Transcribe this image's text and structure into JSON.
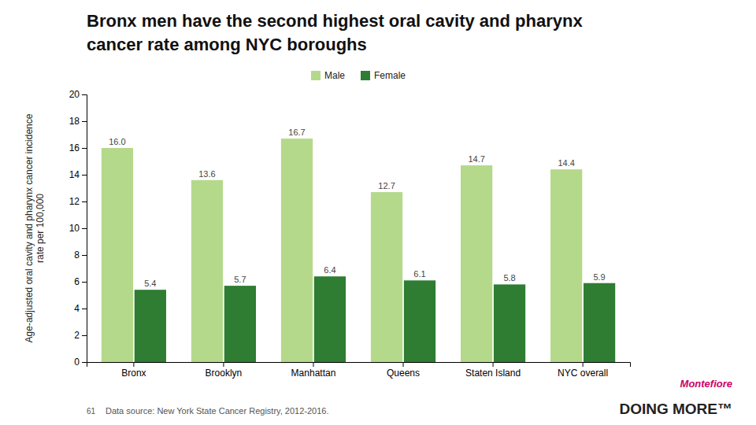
{
  "chart_data": {
    "type": "bar",
    "title": [
      "Bronx men have the second highest oral cavity and pharynx",
      "cancer rate among NYC boroughs"
    ],
    "y_label": [
      "Age-adjusted oral cavity and pharynx cancer incidence",
      "rate per 100,000"
    ],
    "categories": [
      "Bronx",
      "Brooklyn",
      "Manhattan",
      "Queens",
      "Staten Island",
      "NYC overall"
    ],
    "series": [
      {
        "name": "Male",
        "color": "#b5d98a",
        "values": [
          16.0,
          13.6,
          16.7,
          12.7,
          14.7,
          14.4
        ],
        "value_labels": [
          "16.0",
          "13.6",
          "16.7",
          "12.7",
          "14.7",
          "14.4"
        ]
      },
      {
        "name": "Female",
        "color": "#2e7d32",
        "values": [
          5.4,
          5.7,
          6.4,
          6.1,
          5.8,
          5.9
        ],
        "value_labels": [
          "5.4",
          "5.7",
          "6.4",
          "6.1",
          "5.8",
          "5.9"
        ]
      }
    ],
    "ylim": [
      0,
      20
    ],
    "yticks": [
      0,
      2,
      4,
      6,
      8,
      10,
      12,
      14,
      16,
      18,
      20
    ],
    "grid": false,
    "legend": "top",
    "data_labels": true,
    "annotations": [
      {
        "text": "61"
      },
      {
        "text": "Data source: New York State Cancer Registry, 2012-2016."
      },
      {
        "text": "Montefiore",
        "color": "#cc0066"
      },
      {
        "text": "DOING MORE™",
        "color": "#222222"
      }
    ]
  }
}
